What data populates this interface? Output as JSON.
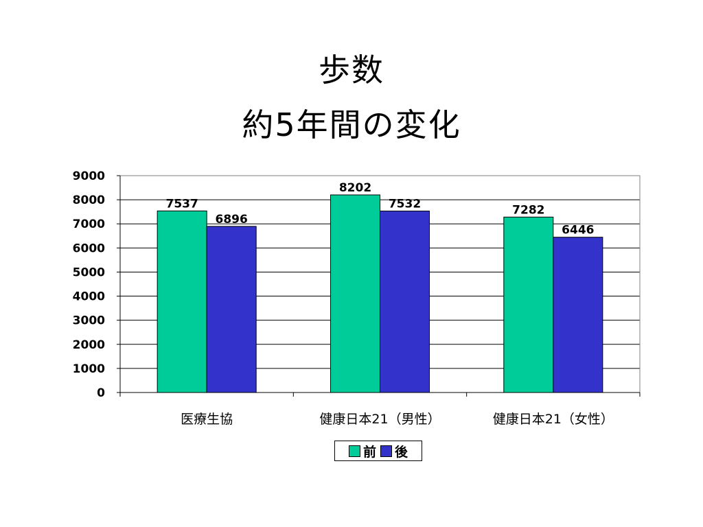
{
  "title": {
    "line1": "歩数",
    "line2": "約5年間の変化"
  },
  "chart_data": {
    "type": "bar",
    "categories": [
      "医療生協",
      "健康日本21（男性）",
      "健康日本21（女性）"
    ],
    "series": [
      {
        "name": "前",
        "values": [
          7537,
          8202,
          7282
        ],
        "color": "#00cc99"
      },
      {
        "name": "後",
        "values": [
          6896,
          7532,
          6446
        ],
        "color": "#3333cc"
      }
    ],
    "ylim": [
      0,
      9000
    ],
    "yticks": [
      0,
      1000,
      2000,
      3000,
      4000,
      5000,
      6000,
      7000,
      8000,
      9000
    ],
    "grid": true,
    "legend": "bottom",
    "data_labels": true
  }
}
